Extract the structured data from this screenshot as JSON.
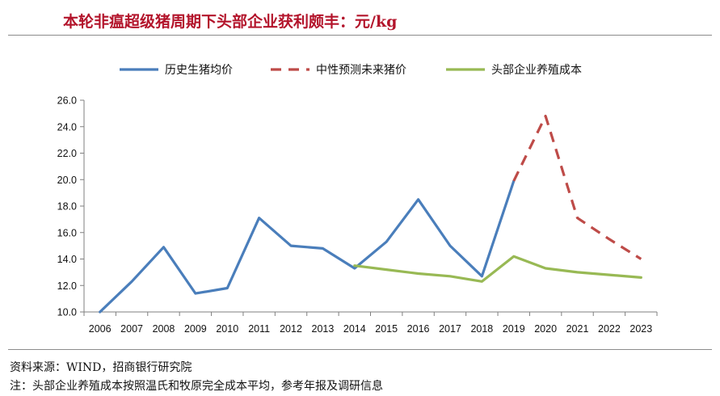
{
  "title": "本轮非瘟超级猪周期下头部企业获利颇丰：元/kg",
  "source": "资料来源：WIND，招商银行研究院",
  "footnote": "注：头部企业养殖成本按照温氏和牧原完全成本平均，参考年报及调研信息",
  "chart_data": {
    "type": "line",
    "x": [
      2006,
      2007,
      2008,
      2009,
      2010,
      2011,
      2012,
      2013,
      2014,
      2015,
      2016,
      2017,
      2018,
      2019,
      2020,
      2021,
      2022,
      2023
    ],
    "ylim": [
      10.0,
      26.0
    ],
    "yticks": [
      "10.0",
      "12.0",
      "14.0",
      "16.0",
      "18.0",
      "20.0",
      "22.0",
      "24.0",
      "26.0"
    ],
    "legend_position": "top",
    "series": [
      {
        "name": "历史生猪均价",
        "color": "#4a7ebb",
        "style": "solid",
        "points": [
          [
            2006,
            10.0
          ],
          [
            2007,
            12.3
          ],
          [
            2008,
            14.9
          ],
          [
            2009,
            11.4
          ],
          [
            2010,
            11.8
          ],
          [
            2011,
            17.1
          ],
          [
            2012,
            15.0
          ],
          [
            2013,
            14.8
          ],
          [
            2014,
            13.3
          ],
          [
            2015,
            15.3
          ],
          [
            2016,
            18.5
          ],
          [
            2017,
            15.0
          ],
          [
            2018,
            12.7
          ],
          [
            2019,
            19.9
          ]
        ]
      },
      {
        "name": "中性预测未来猪价",
        "color": "#be4b48",
        "style": "dashed",
        "points": [
          [
            2019,
            19.9
          ],
          [
            2020,
            24.8
          ],
          [
            2021,
            17.1
          ],
          [
            2022,
            15.5
          ],
          [
            2023,
            14.0
          ]
        ]
      },
      {
        "name": "头部企业养殖成本",
        "color": "#98b954",
        "style": "solid",
        "points": [
          [
            2014,
            13.5
          ],
          [
            2015,
            13.2
          ],
          [
            2016,
            12.9
          ],
          [
            2017,
            12.7
          ],
          [
            2018,
            12.3
          ],
          [
            2019,
            14.2
          ],
          [
            2020,
            13.3
          ],
          [
            2021,
            13.0
          ],
          [
            2022,
            12.8
          ],
          [
            2023,
            12.6
          ]
        ]
      }
    ]
  }
}
